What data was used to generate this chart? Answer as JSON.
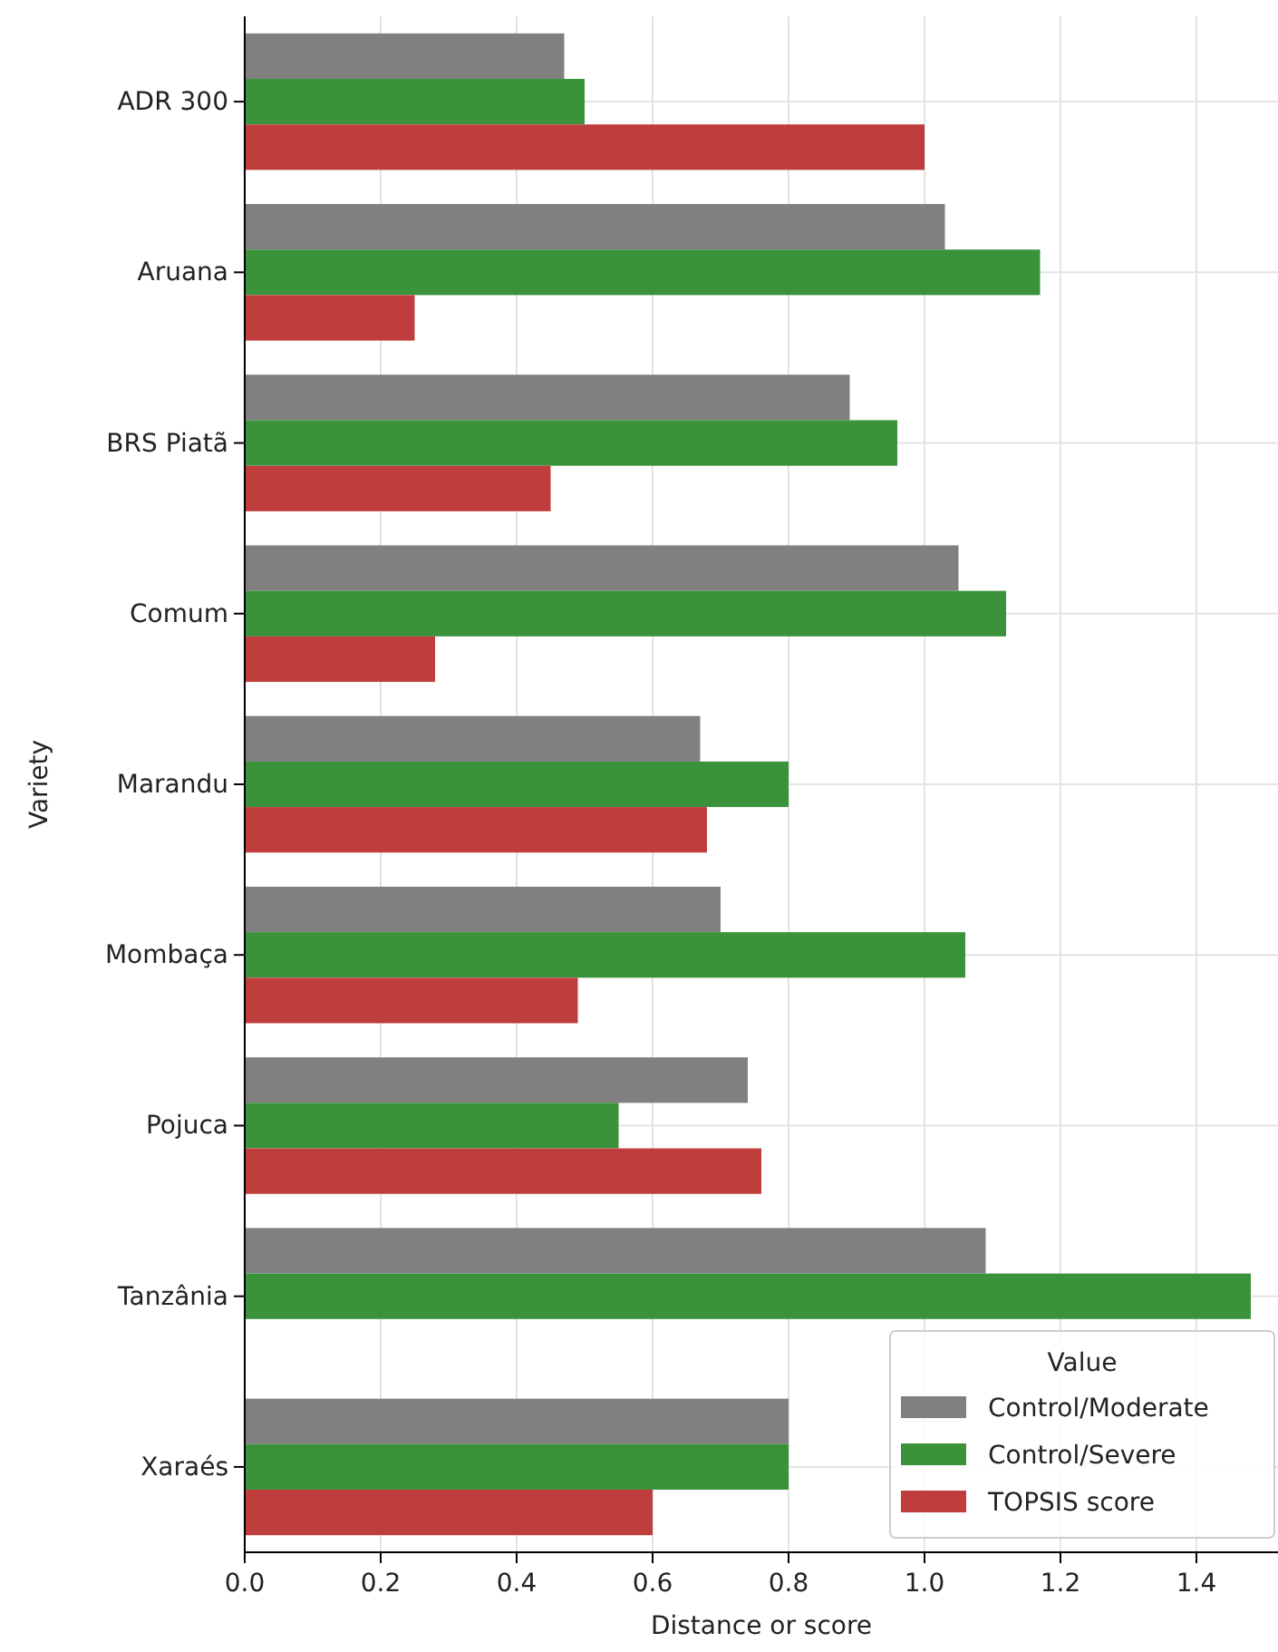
{
  "chart_data": {
    "type": "bar",
    "orientation": "horizontal",
    "xlabel": "Distance or score",
    "ylabel": "Variety",
    "legend_title": "Value",
    "legend": "bottom right",
    "grid": true,
    "categories": [
      "ADR 300",
      "Aruana",
      "BRS Piatã",
      "Comum",
      "Marandu",
      "Mombaça",
      "Pojuca",
      "Tanzânia",
      "Xaraés"
    ],
    "xlim": [
      0,
      1.52
    ],
    "xticks": [
      {
        "value": 0,
        "label": "0.0"
      },
      0.2,
      0.4,
      0.6,
      0.8,
      {
        "value": 1,
        "label": "1.0"
      },
      1.2,
      1.4
    ],
    "series": [
      {
        "name": "Control/Moderate",
        "color": "#808080",
        "values": [
          0.47,
          1.03,
          0.89,
          1.05,
          0.67,
          0.7,
          0.74,
          1.09,
          0.8
        ]
      },
      {
        "name": "Control/Severe",
        "color": "#3a923a",
        "values": [
          0.5,
          1.17,
          0.96,
          1.12,
          0.8,
          1.06,
          0.55,
          1.48,
          0.8
        ]
      },
      {
        "name": "TOPSIS score",
        "color": "#c03d3e",
        "values": [
          1.0,
          0.25,
          0.45,
          0.28,
          0.68,
          0.49,
          0.76,
          0,
          0.6
        ]
      }
    ]
  }
}
